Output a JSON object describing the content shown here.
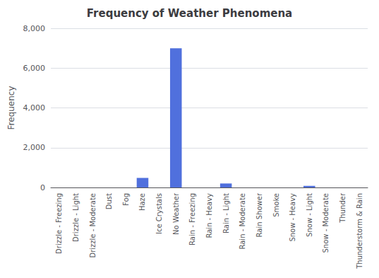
{
  "chart_data": {
    "type": "bar",
    "title": "Frequency of Weather Phenomena",
    "ylabel": "Frequency",
    "categories": [
      "Drizzle - Freezing",
      "Drizzle - Light",
      "Drizzle - Moderate",
      "Dust",
      "Fog",
      "Haze",
      "Ice Crystals",
      "No Weather",
      "Rain - Freezing",
      "Rain - Heavy",
      "Rain - Light",
      "Rain - Moderate",
      "Rain Shower",
      "Smoke",
      "Snow - Heavy",
      "Snow - Light",
      "Snow - Moderate",
      "Thunder",
      "Thunderstorm & Rain"
    ],
    "values": [
      0,
      0,
      0,
      0,
      0,
      480,
      0,
      7000,
      0,
      0,
      200,
      0,
      0,
      0,
      0,
      80,
      0,
      0,
      0
    ],
    "ylim": [
      0,
      8000
    ],
    "yticks": [
      0,
      {
        "value": 2000,
        "label": "2,000"
      },
      {
        "value": 4000,
        "label": "4,000"
      },
      {
        "value": 6000,
        "label": "6,000"
      },
      {
        "value": 8000,
        "label": "8,000"
      }
    ],
    "grid": true
  }
}
